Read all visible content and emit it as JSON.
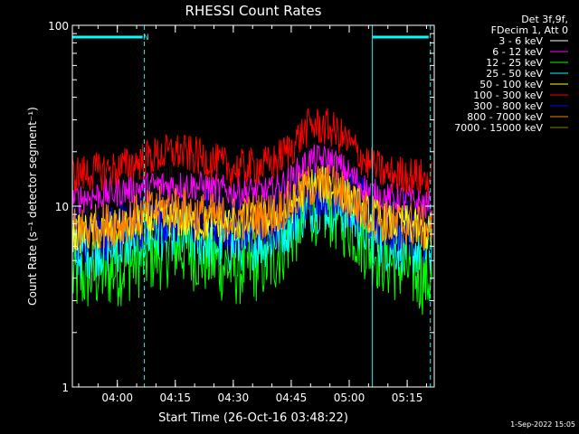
{
  "chart_data": {
    "type": "line",
    "title": "RHESSI Count Rates",
    "xlabel": "Start Time (26-Oct-16 03:48:22)",
    "ylabel": "Count Rate (s⁻¹ detector segment⁻¹)",
    "yscale": "log",
    "ylim": [
      1,
      100
    ],
    "xlim_minutes": [
      "03:48:22",
      "05:22:00"
    ],
    "xticks": [
      "04:00",
      "04:15",
      "04:30",
      "04:45",
      "05:00",
      "05:15"
    ],
    "yticks": [
      "1",
      "10",
      "100"
    ],
    "grid": false,
    "legend_position": "top-right",
    "legend_header": [
      "Det 3f,9f,",
      "FDecim 1, Att 0"
    ],
    "annotations": [
      {
        "text": "N",
        "color": "#00ffff"
      }
    ],
    "attenuator_segments": [
      {
        "start": "03:48:22",
        "end": "04:07:00"
      },
      {
        "start": "05:06:00",
        "end": "05:21:00"
      }
    ],
    "vertical_markers_solid": [
      "03:48:22",
      "05:06:00"
    ],
    "vertical_markers_dashed": [
      "04:07:00",
      "05:21:00"
    ],
    "x": [
      "03:50",
      "04:00",
      "04:10",
      "04:15",
      "04:20",
      "04:30",
      "04:40",
      "04:45",
      "04:50",
      "04:55",
      "05:00",
      "05:05",
      "05:10",
      "05:15",
      "05:20"
    ],
    "series": [
      {
        "name": "3 - 6 keV",
        "color": "#000000",
        "values": [
          10,
          11,
          13,
          12,
          12,
          11,
          11,
          13,
          17,
          16,
          14,
          11,
          9,
          9,
          8
        ]
      },
      {
        "name": "6 - 12 keV",
        "color": "#ff00ff",
        "values": [
          11,
          12,
          13,
          13,
          13,
          12,
          12,
          14,
          18,
          18,
          15,
          12,
          11,
          11,
          10
        ]
      },
      {
        "name": "12 - 25 keV",
        "color": "#00ff00",
        "values": [
          4,
          4.5,
          5.5,
          6,
          5.5,
          4.5,
          5,
          7,
          10,
          9.5,
          8,
          6,
          5,
          4.5,
          4
        ]
      },
      {
        "name": "25 - 50 keV",
        "color": "#00ffff",
        "values": [
          5.5,
          6,
          7,
          7,
          6.5,
          6,
          6.5,
          8,
          10,
          10,
          9,
          7,
          6,
          6,
          5.5
        ]
      },
      {
        "name": "50 - 100 keV",
        "color": "#ffff00",
        "values": [
          7,
          7.5,
          8.5,
          8.5,
          8,
          8,
          8.5,
          10,
          13,
          13,
          11,
          9,
          8,
          8,
          7
        ]
      },
      {
        "name": "100 - 300 keV",
        "color": "#ff0000",
        "values": [
          15,
          16,
          19,
          20,
          19,
          16,
          17,
          21,
          28,
          27,
          22,
          17,
          15,
          15,
          14
        ]
      },
      {
        "name": "300 - 800 keV",
        "color": "#0000ff",
        "values": [
          7,
          7.5,
          9,
          9,
          8.5,
          8,
          8.5,
          10,
          13,
          13,
          11,
          9,
          8,
          8,
          7
        ]
      },
      {
        "name": "800 - 7000 keV",
        "color": "#ff8000",
        "values": [
          7.5,
          8,
          9.5,
          10,
          9,
          8.5,
          9,
          10.5,
          13,
          13,
          11,
          9,
          8,
          8,
          7.5
        ]
      },
      {
        "name": "7000 - 15000 keV",
        "color": "#808000",
        "values": [
          null,
          null,
          null,
          null,
          null,
          null,
          null,
          null,
          null,
          null,
          null,
          null,
          null,
          null,
          null
        ]
      }
    ]
  },
  "footer_timestamp": "1-Sep-2022 15:05"
}
